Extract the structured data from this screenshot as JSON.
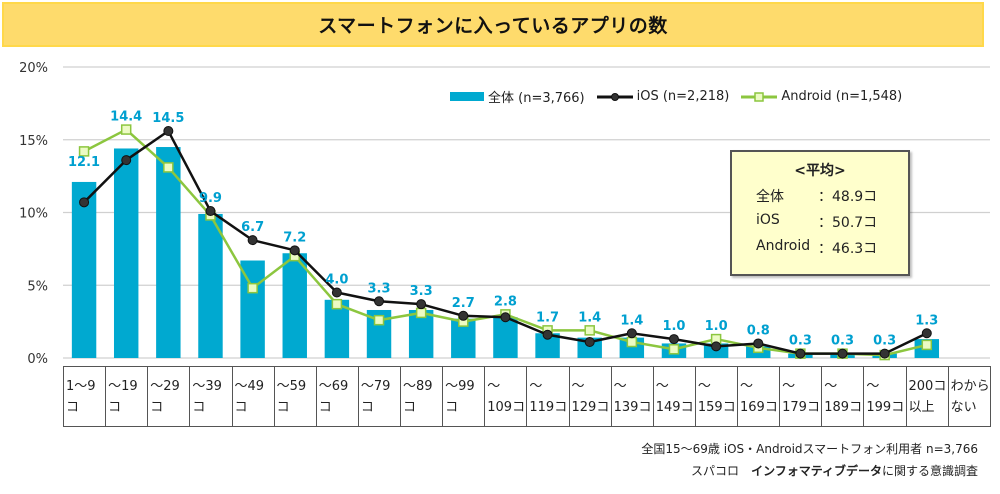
{
  "chart_data": {
    "type": "bar",
    "title": "スマートフォンに入っているアプリの数",
    "xlabel": "",
    "ylabel": "",
    "ylim": [
      0,
      20
    ],
    "y_ticks": [
      "0%",
      "5%",
      "10%",
      "15%",
      "20%"
    ],
    "y_tick_values": [
      0,
      5,
      10,
      15,
      20
    ],
    "grid": true,
    "legend_position": "top-right",
    "categories": [
      "1〜9コ",
      "〜19コ",
      "〜29コ",
      "〜39コ",
      "〜49コ",
      "〜59コ",
      "〜69コ",
      "〜79コ",
      "〜89コ",
      "〜99コ",
      "〜109コ",
      "〜119コ",
      "〜129コ",
      "〜139コ",
      "〜149コ",
      "〜159コ",
      "〜169コ",
      "〜179コ",
      "〜189コ",
      "〜199コ",
      "200コ以上",
      "わからない"
    ],
    "category_labels": [
      "1〜9\nコ",
      "〜19\nコ",
      "〜29\nコ",
      "〜39\nコ",
      "〜49\nコ",
      "〜59\nコ",
      "〜69\nコ",
      "〜79\nコ",
      "〜89\nコ",
      "〜99\nコ",
      "〜\n109コ",
      "〜\n119コ",
      "〜\n129コ",
      "〜\n139コ",
      "〜\n149コ",
      "〜\n159コ",
      "〜\n169コ",
      "〜\n179コ",
      "〜\n189コ",
      "〜\n199コ",
      "200コ\n以上",
      "わから\nない"
    ],
    "series": [
      {
        "name": "全体 (n=3,766)",
        "type": "bar",
        "color": "#00a9d0",
        "values": [
          12.1,
          14.4,
          14.5,
          9.9,
          6.7,
          7.2,
          4.0,
          3.3,
          3.3,
          2.7,
          2.8,
          1.7,
          1.4,
          1.4,
          1.0,
          1.0,
          0.8,
          0.3,
          0.3,
          0.3,
          1.3,
          null
        ],
        "labels": [
          "12.1",
          "14.4",
          "14.5",
          "9.9",
          "6.7",
          "7.2",
          "4.0",
          "3.3",
          "3.3",
          "2.7",
          "2.8",
          "1.7",
          "1.4",
          "1.4",
          "1.0",
          "1.0",
          "0.8",
          "0.3",
          "0.3",
          "0.3",
          "1.3",
          ""
        ]
      },
      {
        "name": "iOS (n=2,218)",
        "type": "line",
        "marker": "circle",
        "color": "#111111",
        "values": [
          10.7,
          13.6,
          15.6,
          10.1,
          8.1,
          7.4,
          4.5,
          3.9,
          3.7,
          2.9,
          2.8,
          1.6,
          1.1,
          1.7,
          1.3,
          0.8,
          1.0,
          0.3,
          0.3,
          0.3,
          1.7,
          null
        ]
      },
      {
        "name": "Android (n=1,548)",
        "type": "line",
        "marker": "square",
        "color": "#8cc63f",
        "values": [
          14.2,
          15.7,
          13.1,
          9.8,
          4.8,
          7.0,
          3.7,
          2.6,
          3.1,
          2.5,
          3.0,
          1.9,
          1.9,
          1.1,
          0.6,
          1.3,
          0.7,
          0.3,
          0.3,
          0.2,
          0.9,
          null
        ]
      }
    ]
  },
  "legend": {
    "all": "全体 (n=3,766)",
    "ios": "iOS (n=2,218)",
    "android": "Android (n=1,548)"
  },
  "average_box": {
    "title": "<平均>",
    "rows": [
      {
        "label": "全体",
        "value": "：48.9コ"
      },
      {
        "label": "iOS",
        "value": "：50.7コ"
      },
      {
        "label": "Android",
        "value": "：46.3コ"
      }
    ]
  },
  "footnotes": {
    "line1": "全国15〜69歳 iOS・Androidスマートフォン利用者 n=3,766",
    "line2_prefix": "スパコロ　",
    "line2_bold": "インフォマティブデータ",
    "line2_suffix": "に関する意識調査"
  },
  "colors": {
    "bar": "#00a9d0",
    "label": "#00a0d0",
    "ios": "#111111",
    "android": "#8cc63f",
    "android_marker_fill": "#ecfbc4",
    "title_bg": "#fedb6c",
    "avg_bg": "#ffffcc"
  }
}
